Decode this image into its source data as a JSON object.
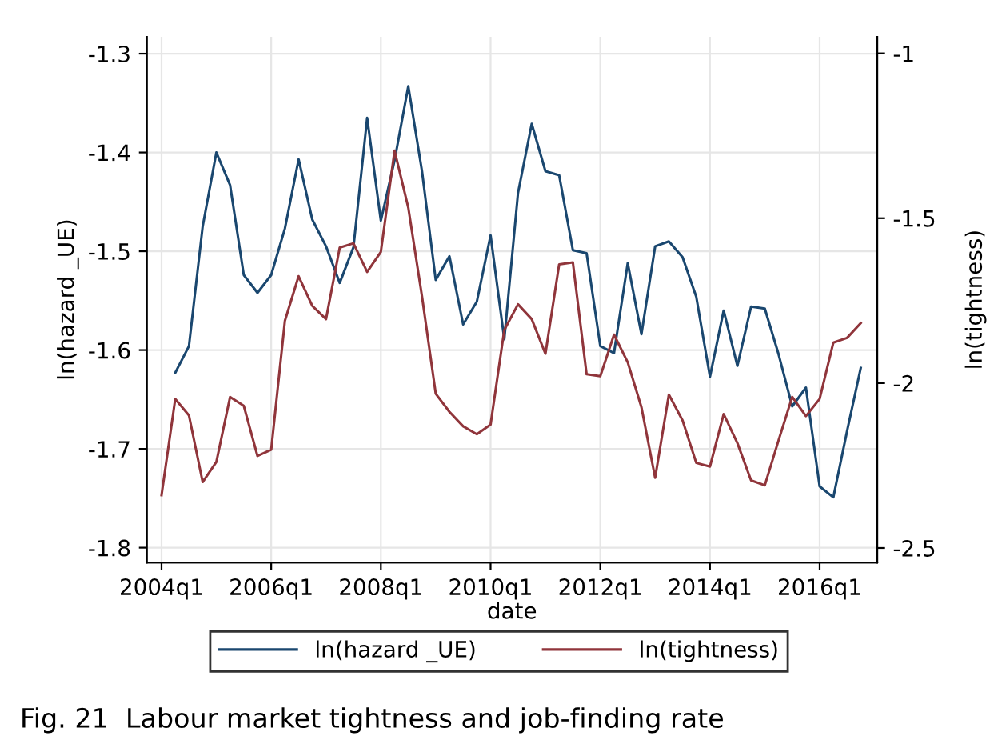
{
  "chart_data": {
    "type": "line",
    "xlabel": "date",
    "ylabel": "ln(hazard _UE)",
    "y2label": "ln(tightness)",
    "categories": [
      "2004q1",
      null,
      null,
      null,
      null,
      null,
      null,
      null,
      "2006q1",
      null,
      null,
      null,
      null,
      null,
      null,
      null,
      "2008q1",
      null,
      null,
      null,
      null,
      null,
      null,
      null,
      "2010q1",
      null,
      null,
      null,
      null,
      null,
      null,
      null,
      "2012q1",
      null,
      null,
      null,
      null,
      null,
      null,
      null,
      "2014q1",
      null,
      null,
      null,
      null,
      null,
      null,
      null,
      "2016q1",
      null,
      null,
      null
    ],
    "series": [
      {
        "name": "ln(hazard _UE)",
        "color": "#1a476f",
        "values": [
          null,
          -1.623,
          -1.596,
          -1.475,
          -1.4,
          -1.433,
          -1.524,
          -1.542,
          -1.524,
          -1.477,
          -1.407,
          -1.468,
          -1.495,
          -1.532,
          -1.496,
          -1.365,
          -1.469,
          -1.408,
          -1.333,
          -1.419,
          -1.529,
          -1.505,
          -1.574,
          -1.551,
          -1.484,
          -1.589,
          -1.441,
          -1.371,
          -1.419,
          -1.423,
          -1.499,
          -1.502,
          -1.596,
          -1.603,
          -1.512,
          -1.584,
          -1.495,
          -1.49,
          -1.506,
          -1.546,
          -1.627,
          -1.56,
          -1.616,
          -1.556,
          -1.558,
          -1.604,
          -1.657,
          -1.638,
          -1.738,
          -1.749,
          -1.682,
          -1.618
        ]
      },
      {
        "name": "ln(tightness)",
        "color": "#90353b",
        "axis": "y2",
        "values": [
          -2.34,
          -2.048,
          -2.098,
          -2.3,
          -2.239,
          -2.042,
          -2.069,
          -2.221,
          -2.202,
          -1.811,
          -1.676,
          -1.766,
          -1.806,
          -1.589,
          -1.576,
          -1.663,
          -1.602,
          -1.295,
          -1.468,
          -1.737,
          -2.032,
          -2.087,
          -2.131,
          -2.155,
          -2.126,
          -1.839,
          -1.761,
          -1.806,
          -1.911,
          -1.64,
          -1.634,
          -1.973,
          -1.979,
          -1.853,
          -1.937,
          -2.073,
          -2.287,
          -2.035,
          -2.113,
          -2.242,
          -2.253,
          -2.094,
          -2.182,
          -2.295,
          -2.31,
          -2.174,
          -2.042,
          -2.1,
          -2.048,
          -1.877,
          -1.863,
          -1.818
        ]
      }
    ],
    "ylim": [
      -1.815,
      -1.283
    ],
    "yticks": [
      -1.8,
      -1.7,
      -1.6,
      -1.5,
      -1.4,
      -1.3
    ],
    "y2lim": [
      -2.544,
      -0.95
    ],
    "y2ticks": [
      -2.5,
      -2,
      -1.5,
      -1
    ],
    "grid": true,
    "legend": "bottom",
    "marker": "none",
    "line_style": "solid",
    "annotations": [
      "Fig. 21  Labour market tightness and job-finding rate"
    ]
  }
}
